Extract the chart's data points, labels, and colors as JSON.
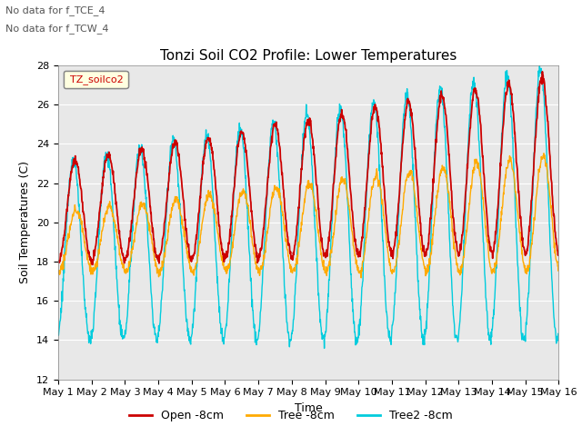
{
  "title": "Tonzi Soil CO2 Profile: Lower Temperatures",
  "ylabel": "Soil Temperatures (C)",
  "xlabel": "Time",
  "annotations": [
    "No data for f_TCE_4",
    "No data for f_TCW_4"
  ],
  "legend_label": "TZ_soilco2",
  "ylim": [
    12,
    28
  ],
  "series_labels": [
    "Open -8cm",
    "Tree -8cm",
    "Tree2 -8cm"
  ],
  "series_colors": [
    "#cc0000",
    "#ffaa00",
    "#00ccdd"
  ],
  "background_color": "#e8e8e8",
  "xtick_labels": [
    "May 1",
    "May 2",
    "May 3",
    "May 4",
    "May 5",
    "May 6",
    "May 7",
    "May 8",
    "May 9",
    "May 10",
    "May 11",
    "May 12",
    "May 13",
    "May 14",
    "May 15",
    "May 16"
  ],
  "n_days": 15,
  "samples_per_day": 96,
  "title_fontsize": 11,
  "axis_fontsize": 9,
  "tick_fontsize": 8
}
